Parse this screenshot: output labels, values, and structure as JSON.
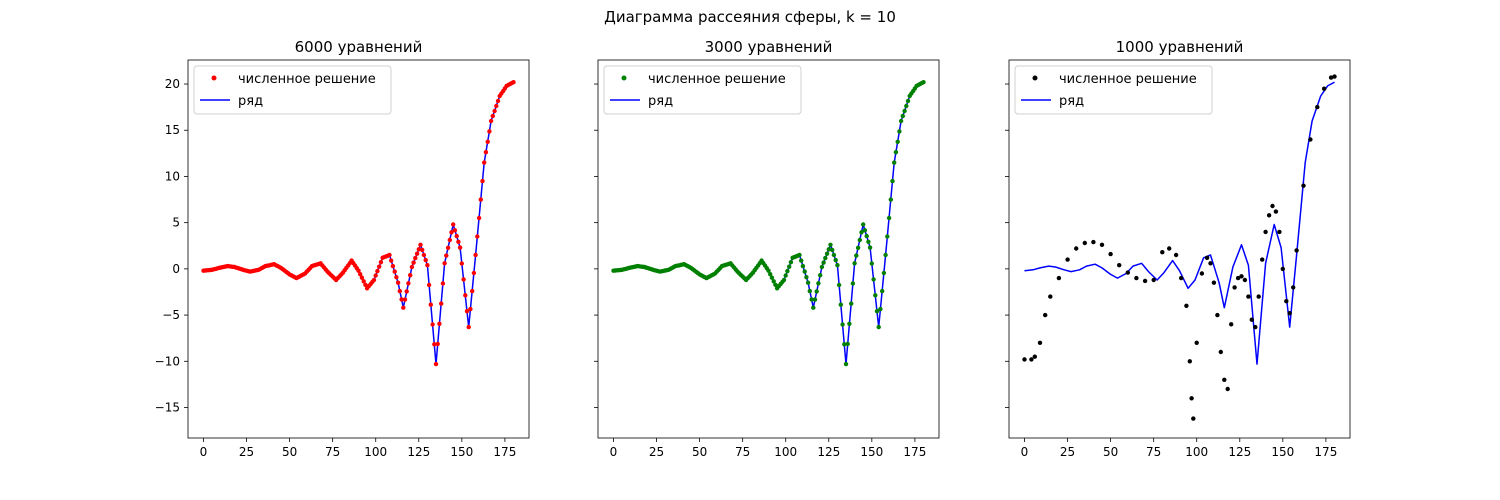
{
  "figure": {
    "suptitle": "Диаграмма рассеяния сферы, k = 10"
  },
  "chart_data": [
    {
      "type": "scatter",
      "title": "6000 уравнений",
      "xlabel": "",
      "ylabel": "",
      "xlim": [
        -9,
        189
      ],
      "ylim": [
        -18.3,
        22.6
      ],
      "xticks": [
        0,
        25,
        50,
        75,
        100,
        125,
        150,
        175
      ],
      "yticks": [
        -15,
        -10,
        -5,
        0,
        5,
        10,
        15,
        20
      ],
      "grid": false,
      "legend_position": "upper-left",
      "series": [
        {
          "name": "численное решение",
          "kind": "points",
          "color": "#ff0000",
          "x_range": [
            0,
            180
          ],
          "points": 181
        },
        {
          "name": "ряд",
          "kind": "line",
          "color": "#0000ff"
        }
      ],
      "series_x": [
        0,
        5,
        9,
        14,
        18,
        23,
        27,
        32,
        36,
        41,
        45,
        50,
        54,
        59,
        63,
        68,
        72,
        77,
        81,
        86,
        90,
        95,
        99,
        104,
        108,
        113,
        116,
        121,
        126,
        130,
        135,
        140,
        145,
        149,
        154,
        158,
        163,
        167,
        172,
        176,
        180
      ],
      "series_y": [
        -0.2,
        -0.1,
        0.1,
        0.3,
        0.2,
        -0.1,
        -0.3,
        -0.1,
        0.3,
        0.5,
        0.1,
        -0.6,
        -1.0,
        -0.5,
        0.3,
        0.6,
        -0.3,
        -1.2,
        -0.4,
        0.9,
        -0.2,
        -2.1,
        -1.2,
        1.2,
        1.5,
        -1.5,
        -4.2,
        0.2,
        2.6,
        0.4,
        -10.3,
        0.6,
        4.8,
        2.3,
        -6.3,
        1.5,
        11.5,
        16.0,
        18.7,
        19.8,
        20.2
      ]
    },
    {
      "type": "scatter",
      "title": "3000 уравнений",
      "xlabel": "",
      "ylabel": "",
      "xlim": [
        -9,
        189
      ],
      "ylim": [
        -18.3,
        22.6
      ],
      "xticks": [
        0,
        25,
        50,
        75,
        100,
        125,
        150,
        175
      ],
      "yticks": [
        -15,
        -10,
        -5,
        0,
        5,
        10,
        15,
        20
      ],
      "grid": false,
      "legend_position": "upper-left",
      "series": [
        {
          "name": "численное решение",
          "kind": "points",
          "color": "#008000",
          "x_range": [
            0,
            180
          ],
          "points": 181
        },
        {
          "name": "ряд",
          "kind": "line",
          "color": "#0000ff"
        }
      ],
      "series_x": [
        0,
        5,
        9,
        14,
        18,
        23,
        27,
        32,
        36,
        41,
        45,
        50,
        54,
        59,
        63,
        68,
        72,
        77,
        81,
        86,
        90,
        95,
        99,
        104,
        108,
        113,
        116,
        121,
        126,
        130,
        135,
        140,
        145,
        149,
        154,
        158,
        163,
        167,
        172,
        176,
        180
      ],
      "series_y": [
        -0.2,
        -0.1,
        0.1,
        0.3,
        0.2,
        -0.1,
        -0.3,
        -0.1,
        0.3,
        0.5,
        0.1,
        -0.6,
        -1.0,
        -0.5,
        0.3,
        0.6,
        -0.3,
        -1.2,
        -0.4,
        0.9,
        -0.2,
        -2.1,
        -1.2,
        1.2,
        1.5,
        -1.5,
        -4.2,
        0.2,
        2.6,
        0.4,
        -10.3,
        0.6,
        4.8,
        2.3,
        -6.3,
        1.5,
        11.5,
        16.0,
        18.7,
        19.8,
        20.2
      ]
    },
    {
      "type": "scatter",
      "title": "1000 уравнений",
      "xlabel": "",
      "ylabel": "",
      "xlim": [
        -9,
        189
      ],
      "ylim": [
        -18.3,
        22.6
      ],
      "xticks": [
        0,
        25,
        50,
        75,
        100,
        125,
        150,
        175
      ],
      "yticks": [
        -15,
        -10,
        -5,
        0,
        5,
        10,
        15,
        20
      ],
      "grid": false,
      "legend_position": "upper-left",
      "series": [
        {
          "name": "численное решение",
          "kind": "points",
          "color": "#000000",
          "x": [
            0,
            4,
            6,
            9,
            12,
            15,
            20,
            25,
            30,
            35,
            40,
            45,
            50,
            55,
            60,
            65,
            70,
            75,
            80,
            84,
            88,
            91,
            94,
            96,
            97,
            98,
            100,
            103,
            106,
            108,
            110,
            112,
            114,
            116,
            118,
            120,
            122,
            124,
            126,
            128,
            130,
            132,
            134,
            136,
            138,
            140,
            142,
            144,
            146,
            148,
            150,
            152,
            154,
            156,
            158,
            162,
            166,
            170,
            174,
            178,
            180
          ],
          "y": [
            -9.8,
            -9.8,
            -9.5,
            -8.0,
            -5.0,
            -3.0,
            -1.0,
            1.0,
            2.2,
            2.8,
            2.9,
            2.6,
            1.6,
            0.4,
            -0.4,
            -1.0,
            -1.3,
            -1.2,
            1.8,
            2.2,
            1.5,
            -1.0,
            -4.0,
            -10.0,
            -14.0,
            -16.2,
            -8.0,
            -0.5,
            1.2,
            0.6,
            -1.5,
            -5.0,
            -9.0,
            -12.0,
            -13.0,
            -6.0,
            -2.0,
            -1.0,
            -0.8,
            -1.2,
            -3.0,
            -5.5,
            -6.3,
            -3.0,
            1.0,
            4.0,
            5.8,
            6.8,
            6.2,
            4.0,
            0.0,
            -3.5,
            -4.8,
            -2.0,
            2.0,
            9.0,
            14.0,
            17.5,
            19.5,
            20.7,
            20.8
          ]
        },
        {
          "name": "ряд",
          "kind": "line",
          "color": "#0000ff",
          "x": [
            0,
            5,
            9,
            14,
            18,
            23,
            27,
            32,
            36,
            41,
            45,
            50,
            54,
            59,
            63,
            68,
            72,
            77,
            81,
            86,
            90,
            95,
            99,
            104,
            108,
            113,
            116,
            121,
            126,
            130,
            135,
            140,
            145,
            149,
            154,
            158,
            163,
            167,
            172,
            176,
            180
          ],
          "y": [
            -0.2,
            -0.1,
            0.1,
            0.3,
            0.2,
            -0.1,
            -0.3,
            -0.1,
            0.3,
            0.5,
            0.1,
            -0.6,
            -1.0,
            -0.5,
            0.3,
            0.6,
            -0.3,
            -1.2,
            -0.4,
            0.9,
            -0.2,
            -2.1,
            -1.2,
            1.2,
            1.5,
            -1.5,
            -4.2,
            0.2,
            2.6,
            0.4,
            -10.3,
            0.6,
            4.8,
            2.3,
            -6.3,
            1.5,
            11.5,
            16.0,
            18.7,
            19.8,
            20.2
          ]
        }
      ]
    }
  ]
}
